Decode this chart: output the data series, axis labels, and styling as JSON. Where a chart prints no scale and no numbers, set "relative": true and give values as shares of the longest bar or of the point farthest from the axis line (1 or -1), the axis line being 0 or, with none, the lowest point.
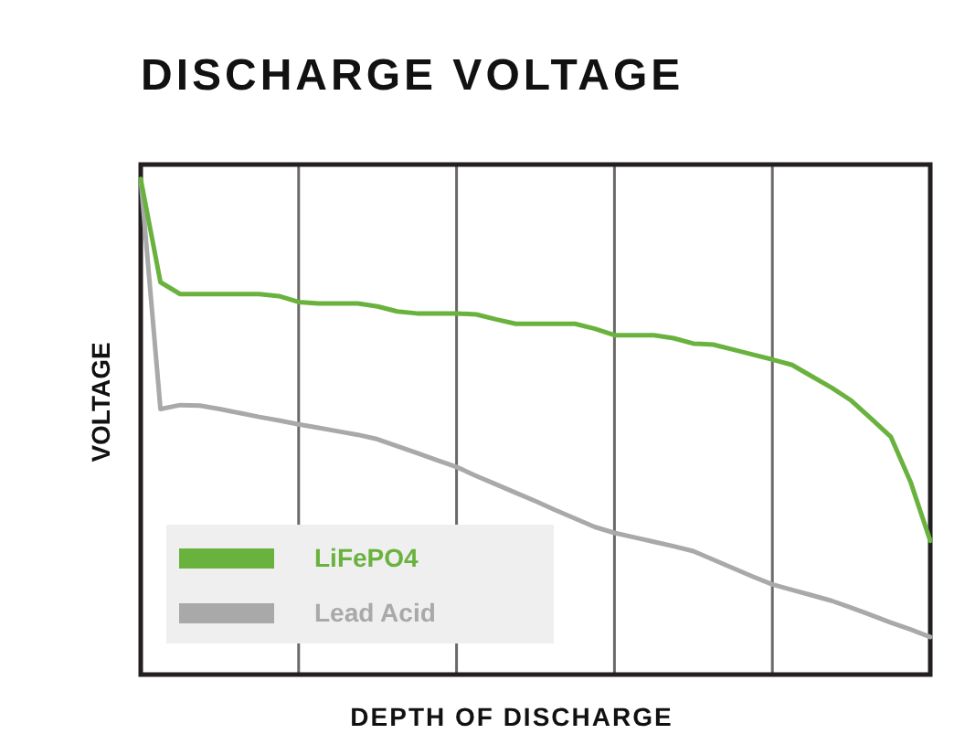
{
  "chart_data": {
    "type": "line",
    "title": "DISCHARGE VOLTAGE",
    "xlabel": "DEPTH OF DISCHARGE",
    "ylabel": "VOLTAGE",
    "relative": true,
    "grid": "x",
    "legend": "bottom left",
    "categories": [
      null,
      null,
      null,
      null,
      null,
      null,
      null,
      null,
      null,
      null,
      null,
      null,
      null,
      null,
      null,
      null,
      null,
      null,
      null,
      null,
      null,
      null,
      null,
      null,
      null,
      null,
      null,
      null,
      null,
      null,
      null,
      null,
      null,
      null,
      null,
      null,
      null,
      null,
      null,
      null,
      null
    ],
    "series": [
      {
        "name": "LiFePO4",
        "color": "#6ab23e",
        "values": [
          1,
          0.792,
          0.768,
          0.768,
          0.768,
          0.768,
          0.768,
          0.764,
          0.752,
          0.749,
          0.749,
          0.749,
          0.743,
          0.733,
          0.729,
          0.729,
          0.729,
          0.727,
          0.717,
          0.708,
          0.708,
          0.708,
          0.708,
          0.698,
          0.685,
          0.685,
          0.685,
          0.679,
          0.668,
          0.666,
          0.656,
          0.646,
          0.636,
          0.625,
          0.602,
          0.579,
          0.553,
          0.517,
          0.48,
          0.389,
          0.27
        ]
      },
      {
        "name": "Lead Acid",
        "color": "#a9a9a9",
        "values": [
          1,
          0.536,
          0.544,
          0.543,
          0.536,
          0.528,
          0.52,
          0.513,
          0.505,
          0.498,
          0.491,
          0.484,
          0.475,
          0.461,
          0.447,
          0.433,
          0.419,
          0.401,
          0.384,
          0.367,
          0.35,
          0.332,
          0.315,
          0.298,
          0.286,
          0.277,
          0.268,
          0.259,
          0.249,
          0.232,
          0.215,
          0.198,
          0.182,
          0.171,
          0.16,
          0.149,
          0.135,
          0.12,
          0.105,
          0.091,
          0.076
        ]
      }
    ]
  }
}
